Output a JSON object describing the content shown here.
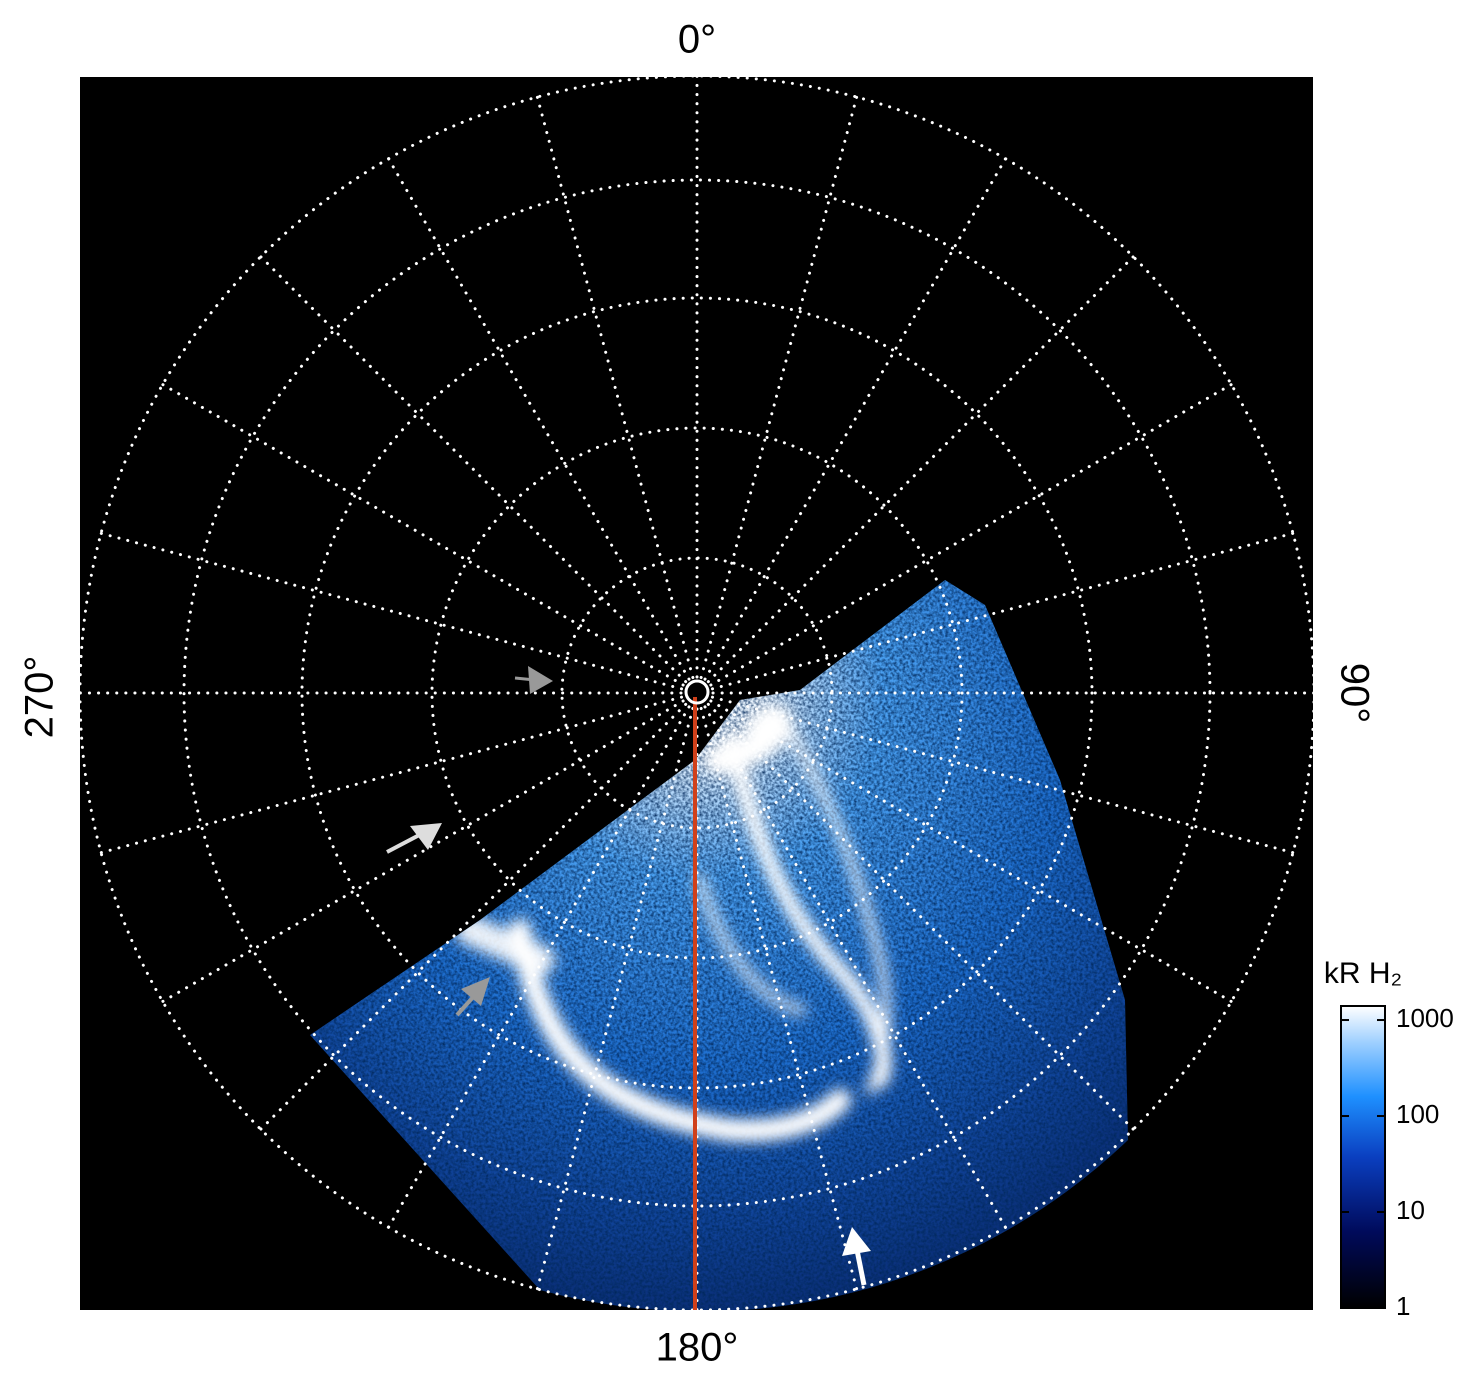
{
  "image": {
    "angle_labels": [
      "0°",
      "90°",
      "180°",
      "270°"
    ]
  },
  "colorbar": {
    "title": "kR H₂",
    "scale": "log",
    "lim": [
      1,
      1400
    ],
    "ticks": [
      1,
      10,
      100,
      1000
    ]
  }
}
